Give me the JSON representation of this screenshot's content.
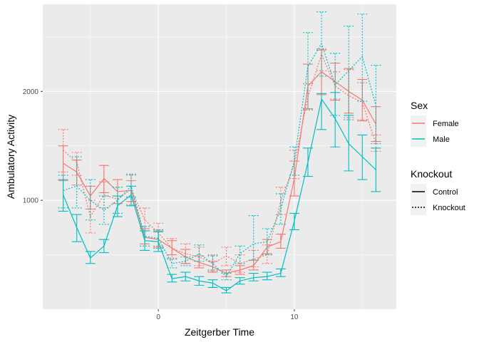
{
  "chart_data": {
    "type": "line",
    "xlabel": "Zeitgerber Time",
    "ylabel": "Ambulatory Activity",
    "xlim": [
      -8.5,
      17.5
    ],
    "ylim": [
      0,
      2800
    ],
    "x_ticks": [
      0,
      10
    ],
    "x_tick_labels": [
      "0",
      "10"
    ],
    "y_ticks": [
      1000,
      2000
    ],
    "y_tick_labels": [
      "1000",
      "2000"
    ],
    "grid": true,
    "legend_position": "right",
    "colors": {
      "Female": "#F8766D",
      "Male": "#00BFC4",
      "panel": "#EBEBEB",
      "grid": "#FFFFFF"
    },
    "legends": {
      "color": {
        "title": "Sex",
        "entries": [
          "Female",
          "Male"
        ]
      },
      "linetype": {
        "title": "Knockout",
        "entries": [
          "Control",
          "Knockout"
        ]
      }
    },
    "x": [
      -7,
      -6,
      -5,
      -4,
      -3,
      -2,
      -1,
      0,
      1,
      2,
      3,
      4,
      5,
      6,
      7,
      8,
      9,
      10,
      11,
      12,
      13,
      14,
      15,
      16
    ],
    "series": [
      {
        "sex": "Female",
        "knockout": "Control",
        "color": "#F8766D",
        "dash": "solid",
        "values": [
          1340,
          1260,
          1040,
          1200,
          1080,
          1090,
          660,
          640,
          560,
          480,
          430,
          390,
          330,
          360,
          400,
          570,
          620,
          1200,
          2050,
          2180,
          2090,
          2000,
          1920,
          1700
        ],
        "lower": [
          1180,
          1140,
          920,
          1070,
          970,
          990,
          600,
          570,
          500,
          420,
          380,
          340,
          300,
          320,
          360,
          510,
          560,
          1040,
          1840,
          1970,
          1920,
          1800,
          1730,
          1540
        ],
        "upper": [
          1500,
          1370,
          1130,
          1320,
          1190,
          1180,
          740,
          720,
          630,
          550,
          490,
          440,
          360,
          400,
          450,
          640,
          690,
          1360,
          2250,
          2380,
          2260,
          2210,
          2110,
          1860
        ]
      },
      {
        "sex": "Female",
        "knockout": "Knockout",
        "color": "#F8766D",
        "dash": "dashed",
        "values": [
          1460,
          1350,
          850,
          1050,
          1010,
          1100,
          820,
          700,
          560,
          510,
          480,
          420,
          490,
          420,
          460,
          500,
          990,
          1330,
          1950,
          2340,
          2050,
          1960,
          1900,
          1520
        ],
        "lower": [
          1260,
          1230,
          700,
          930,
          880,
          960,
          720,
          580,
          470,
          420,
          400,
          350,
          400,
          340,
          390,
          420,
          870,
          1200,
          1830,
          2190,
          1930,
          1760,
          1740,
          1450
        ],
        "upper": [
          1650,
          1440,
          1000,
          1170,
          1120,
          1230,
          930,
          790,
          650,
          600,
          570,
          500,
          570,
          500,
          540,
          590,
          1120,
          1460,
          2070,
          2390,
          2180,
          2200,
          2080,
          1600
        ]
      },
      {
        "sex": "Male",
        "knockout": "Control",
        "color": "#00BFC4",
        "dash": "solid",
        "values": [
          1050,
          750,
          470,
          580,
          950,
          1050,
          630,
          620,
          280,
          300,
          260,
          240,
          170,
          260,
          290,
          300,
          330,
          810,
          1350,
          1930,
          1750,
          1520,
          1400,
          1280
        ],
        "lower": [
          900,
          620,
          420,
          520,
          850,
          950,
          540,
          530,
          250,
          260,
          220,
          200,
          150,
          230,
          260,
          270,
          300,
          730,
          1220,
          1650,
          1490,
          1270,
          1190,
          1080
        ],
        "upper": [
          1190,
          870,
          530,
          640,
          1040,
          1130,
          720,
          710,
          320,
          340,
          300,
          270,
          200,
          290,
          330,
          340,
          370,
          880,
          1480,
          1980,
          1990,
          1780,
          1600,
          1480
        ]
      },
      {
        "sex": "Male",
        "knockout": "Knockout",
        "color": "#00BFC4",
        "dash": "dashed",
        "values": [
          1090,
          1130,
          1000,
          910,
          1000,
          1130,
          670,
          650,
          420,
          440,
          510,
          420,
          300,
          510,
          600,
          620,
          920,
          1360,
          2230,
          2440,
          2060,
          2190,
          2320,
          1870
        ],
        "lower": [
          930,
          930,
          820,
          780,
          880,
          1030,
          580,
          560,
          380,
          400,
          440,
          360,
          270,
          420,
          450,
          500,
          780,
          1230,
          1840,
          2140,
          1780,
          1740,
          1910,
          1520
        ],
        "upper": [
          1230,
          1400,
          1190,
          1040,
          1120,
          1240,
          760,
          730,
          460,
          480,
          590,
          490,
          330,
          580,
          860,
          740,
          1060,
          1490,
          2540,
          2730,
          2350,
          2600,
          2710,
          2240
        ]
      }
    ]
  }
}
